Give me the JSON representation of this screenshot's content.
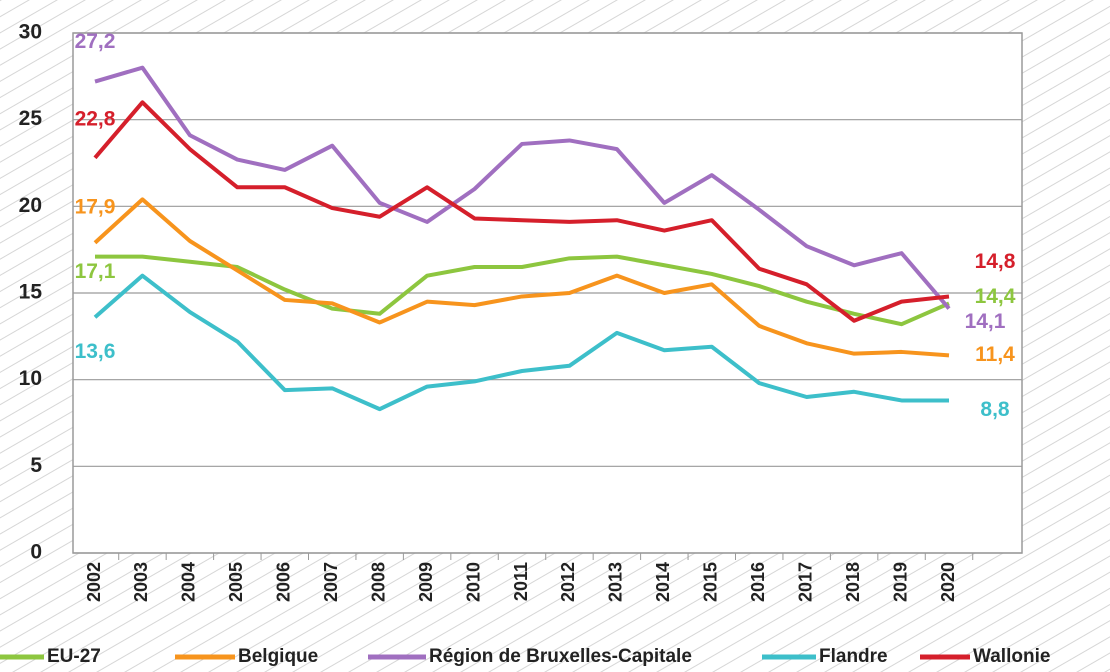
{
  "chart_data": {
    "type": "line",
    "categories": [
      "2002",
      "2003",
      "2004",
      "2005",
      "2006",
      "2007",
      "2008",
      "2009",
      "2010",
      "2011",
      "2012",
      "2013",
      "2014",
      "2015",
      "2016",
      "2017",
      "2018",
      "2019",
      "2020"
    ],
    "ylim": [
      0,
      30
    ],
    "yticks": [
      0,
      5,
      10,
      15,
      20,
      25,
      30
    ],
    "grid": true,
    "series": [
      {
        "name": "EU-27",
        "color": "#8dc63f",
        "values": [
          17.1,
          17.1,
          16.8,
          16.5,
          15.2,
          14.1,
          13.8,
          16.0,
          16.5,
          16.5,
          17.0,
          17.1,
          16.6,
          16.1,
          15.4,
          14.5,
          13.8,
          13.2,
          14.4
        ],
        "value_labels": [
          "17,1",
          null,
          null,
          null,
          null,
          null,
          null,
          null,
          null,
          null,
          null,
          null,
          null,
          null,
          null,
          null,
          null,
          null,
          "14,4"
        ]
      },
      {
        "name": "Belgique",
        "color": "#f7941d",
        "values": [
          17.9,
          20.4,
          18.0,
          16.3,
          14.6,
          14.4,
          13.3,
          14.5,
          14.3,
          14.8,
          15.0,
          16.0,
          15.0,
          15.5,
          13.1,
          12.1,
          11.5,
          11.6,
          11.4
        ],
        "value_labels": [
          "17,9",
          null,
          null,
          null,
          null,
          null,
          null,
          null,
          null,
          null,
          null,
          null,
          null,
          null,
          null,
          null,
          null,
          null,
          "11,4"
        ]
      },
      {
        "name": "Région de Bruxelles-Capitale",
        "color": "#a06fc0",
        "values": [
          27.2,
          28.0,
          24.1,
          22.7,
          22.1,
          23.5,
          20.2,
          19.1,
          21.0,
          23.6,
          23.8,
          23.3,
          20.2,
          21.8,
          19.8,
          17.7,
          16.6,
          17.3,
          14.1
        ],
        "value_labels": [
          "27,2",
          null,
          null,
          null,
          null,
          null,
          null,
          null,
          null,
          null,
          null,
          null,
          null,
          null,
          null,
          null,
          null,
          null,
          "14,1"
        ]
      },
      {
        "name": "Flandre",
        "color": "#3dbfca",
        "values": [
          13.6,
          16.0,
          13.9,
          12.2,
          9.4,
          9.5,
          8.3,
          9.6,
          9.9,
          10.5,
          10.8,
          12.7,
          11.7,
          11.9,
          9.8,
          9.0,
          9.3,
          8.8,
          8.8
        ],
        "value_labels": [
          "13,6",
          null,
          null,
          null,
          null,
          null,
          null,
          null,
          null,
          null,
          null,
          null,
          null,
          null,
          null,
          null,
          null,
          null,
          "8,8"
        ]
      },
      {
        "name": "Wallonie",
        "color": "#d51f2b",
        "values": [
          22.8,
          26.0,
          23.3,
          21.1,
          21.1,
          19.9,
          19.4,
          21.1,
          19.3,
          19.2,
          19.1,
          19.2,
          18.6,
          19.2,
          16.4,
          15.5,
          13.4,
          14.5,
          14.8
        ],
        "value_labels": [
          "22,8",
          null,
          null,
          null,
          null,
          null,
          null,
          null,
          null,
          null,
          null,
          null,
          null,
          null,
          null,
          null,
          null,
          null,
          "14,8"
        ]
      }
    ]
  }
}
